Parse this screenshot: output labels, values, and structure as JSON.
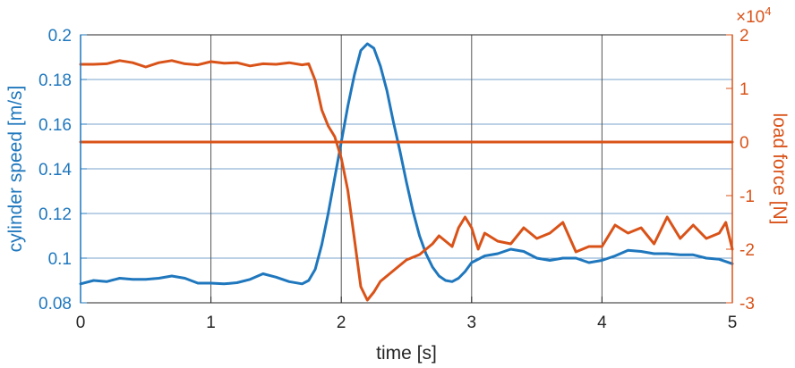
{
  "colors": {
    "left_axis": "#1f77bd",
    "right_axis": "#d95319",
    "grid_h": "#7aa3cc",
    "grid_v": "#555555",
    "frame": "#262626"
  },
  "chart_data": {
    "type": "line",
    "xlabel": "time [s]",
    "ylabel_left": "cylinder speed [m/s]",
    "ylabel_right": "load force [N]",
    "right_exponent_base": "×10",
    "right_exponent_power": "4",
    "xlim": [
      0,
      5
    ],
    "ylim_left": [
      0.08,
      0.2
    ],
    "ylim_right": [
      -3,
      2
    ],
    "x_ticks": [
      "0",
      "1",
      "2",
      "3",
      "4",
      "5"
    ],
    "y_left_ticks": [
      "0.08",
      "0.1",
      "0.12",
      "0.14",
      "0.16",
      "0.18",
      "0.2"
    ],
    "y_right_ticks": [
      "-3",
      "-2",
      "-1",
      "0",
      "1",
      "2"
    ],
    "grid": true,
    "series": [
      {
        "axis": "left",
        "color": "#1f77bd",
        "x": [
          0,
          0.1,
          0.2,
          0.3,
          0.4,
          0.5,
          0.6,
          0.7,
          0.8,
          0.9,
          1.0,
          1.1,
          1.2,
          1.3,
          1.4,
          1.5,
          1.6,
          1.7,
          1.75,
          1.8,
          1.85,
          1.9,
          1.95,
          2.0,
          2.05,
          2.1,
          2.15,
          2.2,
          2.25,
          2.3,
          2.35,
          2.4,
          2.45,
          2.5,
          2.55,
          2.6,
          2.65,
          2.7,
          2.75,
          2.8,
          2.85,
          2.9,
          2.95,
          3.0,
          3.1,
          3.2,
          3.3,
          3.4,
          3.5,
          3.6,
          3.7,
          3.8,
          3.9,
          4.0,
          4.1,
          4.2,
          4.3,
          4.4,
          4.5,
          4.6,
          4.7,
          4.8,
          4.9,
          5.0
        ],
        "y": [
          0.0885,
          0.09,
          0.0895,
          0.091,
          0.0905,
          0.0905,
          0.091,
          0.092,
          0.091,
          0.0888,
          0.0888,
          0.0885,
          0.089,
          0.0905,
          0.093,
          0.0915,
          0.0895,
          0.0885,
          0.09,
          0.095,
          0.106,
          0.12,
          0.136,
          0.152,
          0.168,
          0.182,
          0.193,
          0.196,
          0.194,
          0.186,
          0.175,
          0.161,
          0.148,
          0.134,
          0.121,
          0.11,
          0.102,
          0.096,
          0.092,
          0.09,
          0.0895,
          0.091,
          0.094,
          0.098,
          0.101,
          0.102,
          0.104,
          0.103,
          0.1,
          0.099,
          0.1,
          0.1,
          0.098,
          0.099,
          0.101,
          0.1035,
          0.103,
          0.102,
          0.102,
          0.1015,
          0.1015,
          0.1,
          0.0995,
          0.0975
        ]
      },
      {
        "axis": "right",
        "color": "#d95319",
        "x": [
          0,
          0.1,
          0.2,
          0.3,
          0.4,
          0.5,
          0.6,
          0.7,
          0.8,
          0.9,
          1.0,
          1.1,
          1.2,
          1.3,
          1.4,
          1.5,
          1.6,
          1.7,
          1.75,
          1.8,
          1.85,
          1.9,
          1.95,
          2.0,
          2.05,
          2.1,
          2.15,
          2.2,
          2.25,
          2.3,
          2.4,
          2.5,
          2.6,
          2.7,
          2.75,
          2.8,
          2.85,
          2.9,
          2.95,
          3.0,
          3.05,
          3.1,
          3.2,
          3.3,
          3.4,
          3.5,
          3.55,
          3.6,
          3.7,
          3.8,
          3.9,
          4.0,
          4.1,
          4.2,
          4.3,
          4.4,
          4.5,
          4.6,
          4.7,
          4.8,
          4.9,
          4.95,
          5.0
        ],
        "y": [
          1.45,
          1.45,
          1.46,
          1.52,
          1.48,
          1.4,
          1.48,
          1.52,
          1.46,
          1.44,
          1.5,
          1.47,
          1.48,
          1.42,
          1.46,
          1.45,
          1.48,
          1.44,
          1.46,
          1.15,
          0.6,
          0.3,
          0.1,
          -0.3,
          -0.9,
          -1.8,
          -2.7,
          -2.95,
          -2.8,
          -2.6,
          -2.4,
          -2.2,
          -2.1,
          -1.9,
          -1.75,
          -1.85,
          -1.95,
          -1.6,
          -1.4,
          -1.6,
          -2.0,
          -1.7,
          -1.85,
          -1.9,
          -1.6,
          -1.8,
          -1.75,
          -1.7,
          -1.5,
          -2.05,
          -1.95,
          -1.95,
          -1.55,
          -1.7,
          -1.6,
          -1.9,
          -1.4,
          -1.8,
          -1.55,
          -1.8,
          -1.7,
          -1.5,
          -2.0
        ]
      },
      {
        "axis": "right",
        "color": "#d95319",
        "x": [
          0,
          5
        ],
        "y": [
          0,
          0
        ]
      }
    ]
  }
}
